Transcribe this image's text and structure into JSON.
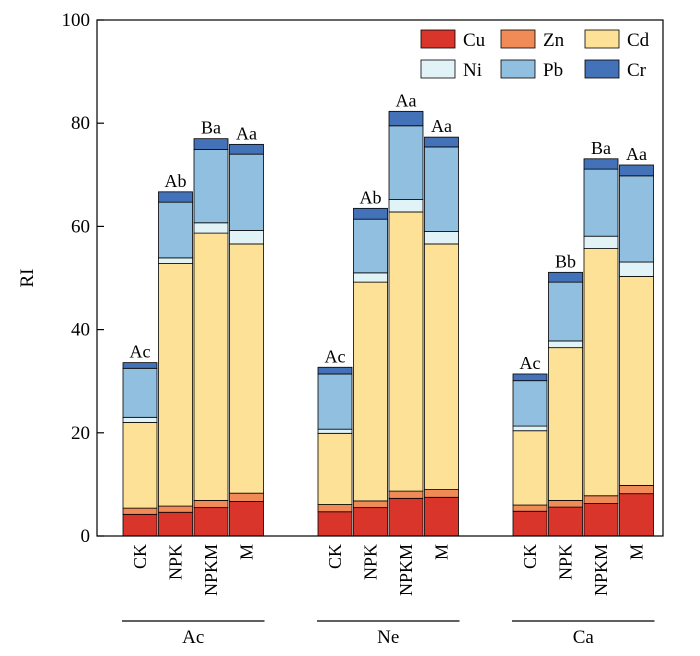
{
  "chart_data": {
    "type": "bar",
    "stacked": true,
    "ylabel": "RI",
    "ylim": [
      0,
      100
    ],
    "yticks": [
      0,
      20,
      40,
      60,
      80,
      100
    ],
    "groups": [
      "Ac",
      "Ne",
      "Ca"
    ],
    "treatments": [
      "CK",
      "NPK",
      "NPKM",
      "M"
    ],
    "legend_placement": "top-right",
    "series": [
      {
        "name": "Cu",
        "color": "#d9352a"
      },
      {
        "name": "Zn",
        "color": "#f08b57"
      },
      {
        "name": "Cd",
        "color": "#fde197"
      },
      {
        "name": "Ni",
        "color": "#e2f3f8"
      },
      {
        "name": "Pb",
        "color": "#91bfe0"
      },
      {
        "name": "Cr",
        "color": "#4472b8"
      }
    ],
    "bars": [
      {
        "group": "Ac",
        "treatment": "CK",
        "label": "Ac",
        "values": [
          4.2,
          1.2,
          16.6,
          1.0,
          9.5,
          1.1
        ]
      },
      {
        "group": "Ac",
        "treatment": "NPK",
        "label": "Ab",
        "values": [
          4.6,
          1.2,
          47.0,
          1.1,
          10.8,
          2.0
        ]
      },
      {
        "group": "Ac",
        "treatment": "NPKM",
        "label": "Ba",
        "values": [
          5.5,
          1.4,
          51.8,
          2.0,
          14.2,
          2.1
        ]
      },
      {
        "group": "Ac",
        "treatment": "M",
        "label": "Aa",
        "values": [
          6.7,
          1.6,
          48.3,
          2.6,
          14.8,
          1.9
        ]
      },
      {
        "group": "Ne",
        "treatment": "CK",
        "label": "Ac",
        "values": [
          4.7,
          1.4,
          13.8,
          0.8,
          10.7,
          1.3
        ]
      },
      {
        "group": "Ne",
        "treatment": "NPK",
        "label": "Ab",
        "values": [
          5.5,
          1.3,
          42.4,
          1.8,
          10.4,
          2.1
        ]
      },
      {
        "group": "Ne",
        "treatment": "NPKM",
        "label": "Aa",
        "values": [
          7.3,
          1.4,
          54.1,
          2.4,
          14.3,
          2.8
        ]
      },
      {
        "group": "Ne",
        "treatment": "M",
        "label": "Aa",
        "values": [
          7.5,
          1.5,
          47.6,
          2.4,
          16.4,
          1.9
        ]
      },
      {
        "group": "Ca",
        "treatment": "CK",
        "label": "Ac",
        "values": [
          4.8,
          1.2,
          14.4,
          0.9,
          8.8,
          1.3
        ]
      },
      {
        "group": "Ca",
        "treatment": "NPK",
        "label": "Bb",
        "values": [
          5.6,
          1.3,
          29.6,
          1.3,
          11.4,
          1.9
        ]
      },
      {
        "group": "Ca",
        "treatment": "NPKM",
        "label": "Ba",
        "values": [
          6.3,
          1.5,
          47.9,
          2.4,
          13.0,
          2.0
        ]
      },
      {
        "group": "Ca",
        "treatment": "M",
        "label": "Aa",
        "values": [
          8.2,
          1.6,
          40.5,
          2.8,
          16.7,
          2.1
        ]
      }
    ]
  }
}
